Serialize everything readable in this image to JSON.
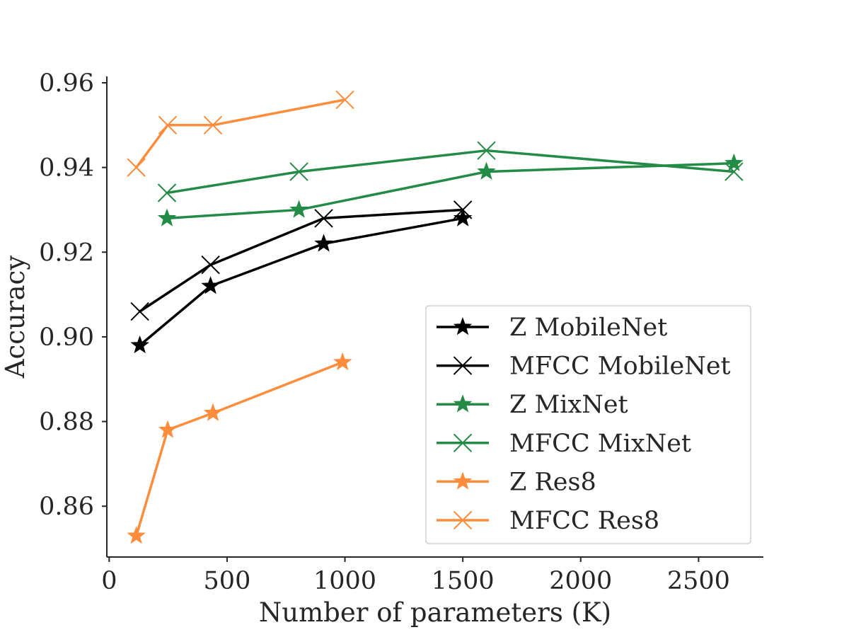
{
  "chart_data": {
    "type": "line",
    "title": "",
    "xlabel": "Number of parameters (K)",
    "ylabel": "Accuracy",
    "xlim": [
      -10,
      2775
    ],
    "ylim": [
      0.848,
      0.9615
    ],
    "xticks": [
      0,
      500,
      1000,
      1500,
      2000,
      2500
    ],
    "xtick_labels": [
      "0",
      "500",
      "1000",
      "1500",
      "2000",
      "2500"
    ],
    "yticks": [
      0.86,
      0.88,
      0.9,
      0.92,
      0.94,
      0.96
    ],
    "ytick_labels": [
      "0.86",
      "0.88",
      "0.90",
      "0.92",
      "0.94",
      "0.96"
    ],
    "grid": false,
    "legend_position": "lower-right",
    "series": [
      {
        "name": "Z MobileNet",
        "marker": "star",
        "color": "#000000",
        "x": [
          130,
          430,
          910,
          1500
        ],
        "y": [
          0.898,
          0.912,
          0.922,
          0.928
        ]
      },
      {
        "name": "MFCC MobileNet",
        "marker": "x",
        "color": "#000000",
        "x": [
          130,
          430,
          910,
          1500
        ],
        "y": [
          0.906,
          0.917,
          0.928,
          0.93
        ]
      },
      {
        "name": "Z MixNet",
        "marker": "star",
        "color": "#238b45",
        "x": [
          245,
          805,
          1600,
          2650
        ],
        "y": [
          0.928,
          0.93,
          0.939,
          0.941
        ]
      },
      {
        "name": "MFCC MixNet",
        "marker": "x",
        "color": "#238b45",
        "x": [
          245,
          805,
          1600,
          2650
        ],
        "y": [
          0.934,
          0.939,
          0.944,
          0.939
        ]
      },
      {
        "name": "Z Res8",
        "marker": "star",
        "color": "#fd8d3c",
        "x": [
          115,
          248,
          440,
          990
        ],
        "y": [
          0.853,
          0.878,
          0.882,
          0.894
        ]
      },
      {
        "name": "MFCC Res8",
        "marker": "x",
        "color": "#fd8d3c",
        "x": [
          115,
          248,
          440,
          1000
        ],
        "y": [
          0.94,
          0.95,
          0.95,
          0.956
        ]
      }
    ]
  }
}
